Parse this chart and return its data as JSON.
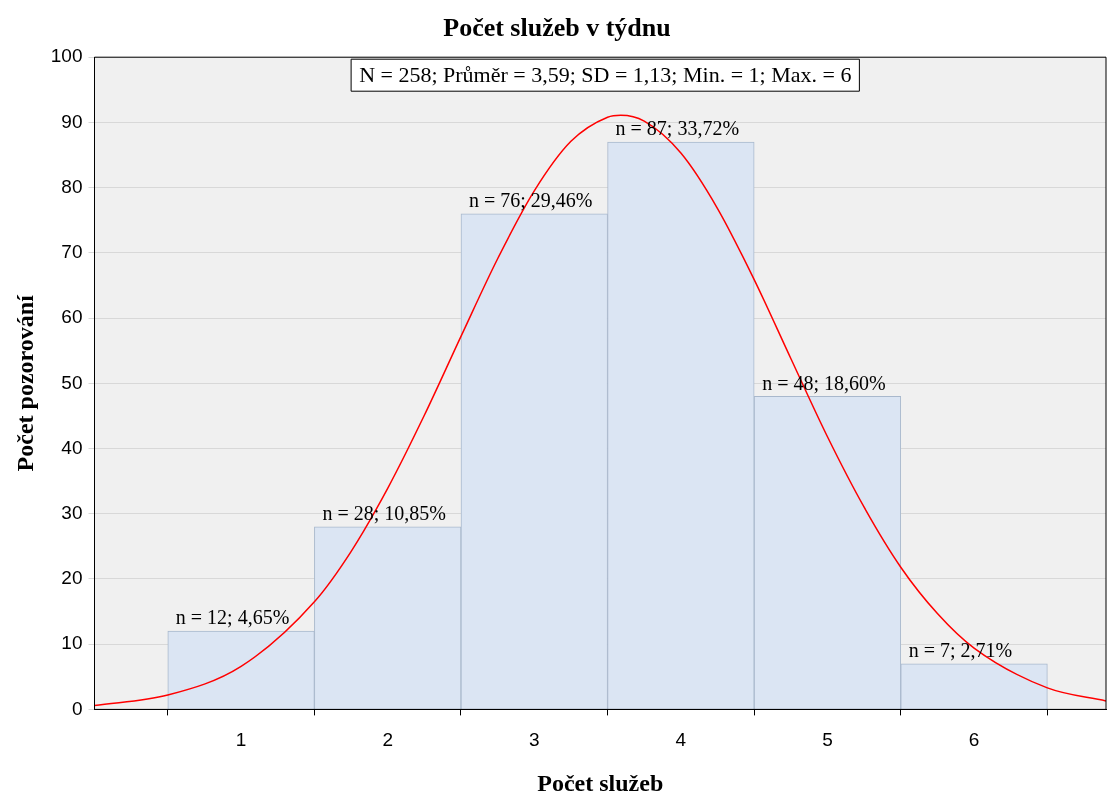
{
  "chart_data": {
    "type": "histogram",
    "title": "Počet služeb v týdnu",
    "xlabel": "Počet služeb",
    "ylabel": "Počet pozorování",
    "annotations": [
      "N = 258; Průměr = 3,59; SD = 1,13; Min. = 1; Max. = 6"
    ],
    "bins": [
      0.5,
      1.5,
      2.5,
      3.5,
      4.5,
      5.5,
      6.5
    ],
    "values": [
      12,
      28,
      76,
      87,
      48,
      7
    ],
    "color": "#dbe5f3",
    "value_labels": [
      "n = 12; 4,65%",
      "n = 28; 10,85%",
      "n = 76; 29,46%",
      "n = 87; 33,72%",
      "n = 48; 18,60%",
      "n = 7; 2,71%"
    ],
    "series": [
      {
        "type": "line",
        "color": "#ff0000",
        "x": [
          0,
          0.5,
          1,
          1.5,
          1.75,
          2,
          2.25,
          2.5,
          2.75,
          3,
          3.25,
          3.5,
          3.59,
          3.75,
          4,
          4.25,
          4.5,
          4.75,
          5,
          5.25,
          5.5,
          5.75,
          6,
          6.5,
          6.9
        ],
        "values": [
          0.6,
          2.2,
          6.6,
          16.5,
          24.2,
          33.9,
          45.1,
          57.2,
          69.1,
          79.5,
          87.1,
          90.8,
          91.1,
          90.2,
          85.3,
          76.8,
          65.9,
          53.8,
          41.8,
          31.0,
          21.8,
          14.7,
          9.4,
          3.3,
          1.3
        ]
      }
    ],
    "xlim": [
      0,
      6.9
    ],
    "xticks": [
      1,
      2,
      3,
      4,
      5,
      6
    ],
    "ylim": [
      0,
      100
    ],
    "yticks": [
      0,
      10,
      20,
      30,
      40,
      50,
      60,
      70,
      80,
      90,
      100
    ],
    "grid": "y",
    "legend": false
  }
}
